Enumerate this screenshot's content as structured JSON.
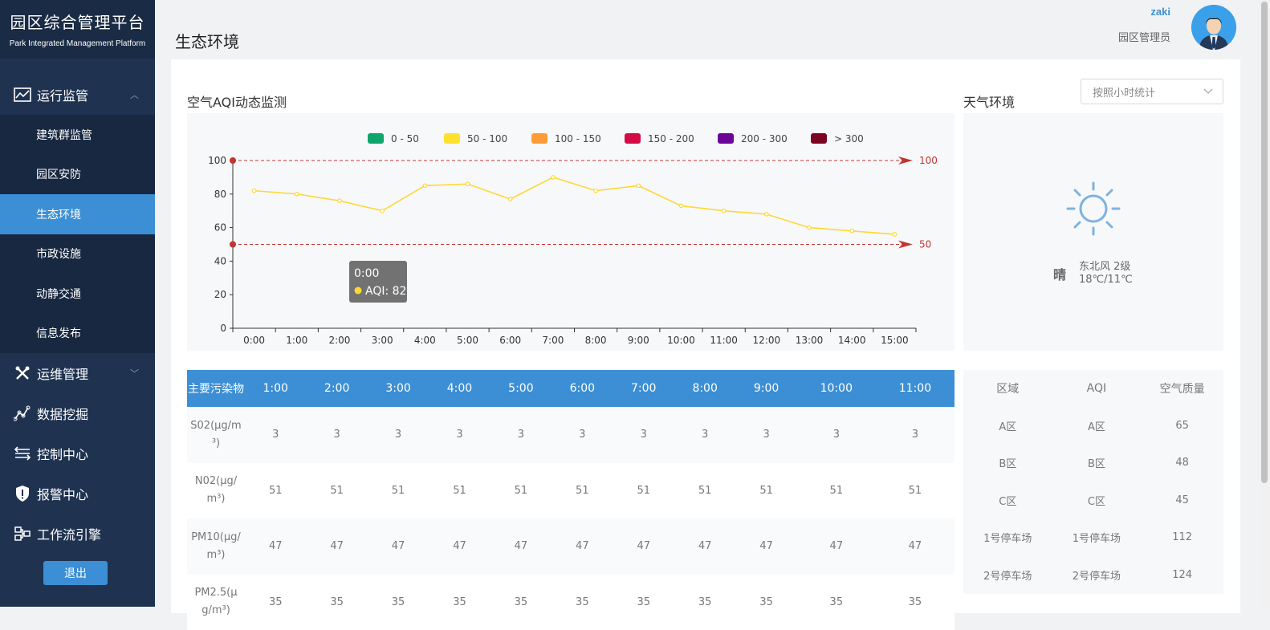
{
  "brand": {
    "title": "园区综合管理平台",
    "subtitle": "Park Integrated Management Platform"
  },
  "sidebar": {
    "groups": [
      {
        "label": "运行监管",
        "icon": "monitor-chart-icon"
      },
      {
        "label": "运维管理",
        "icon": "tools-icon"
      },
      {
        "label": "数据挖掘",
        "icon": "data-mining-icon"
      },
      {
        "label": "控制中心",
        "icon": "control-sliders-icon"
      },
      {
        "label": "报警中心",
        "icon": "alarm-shield-icon"
      },
      {
        "label": "工作流引擎",
        "icon": "workflow-icon"
      }
    ],
    "sub_items": [
      "建筑群监管",
      "园区安防",
      "生态环境",
      "市政设施",
      "动静交通",
      "信息发布"
    ],
    "active_sub": "生态环境",
    "logout_label": "退出"
  },
  "header": {
    "page_title": "生态环境",
    "user_name": "zaki",
    "user_role": "园区管理员"
  },
  "aqi_section": {
    "title": "空气AQI动态监测"
  },
  "weather_section": {
    "title": "天气环境",
    "select_value": "按照小时统计",
    "condition": "晴",
    "wind": "东北风 2级",
    "temperature": "18℃/11℃",
    "icon": "sun-icon"
  },
  "chart_data": {
    "type": "line",
    "legend": [
      {
        "label": "0 - 50",
        "color": "#0fa56d"
      },
      {
        "label": "50 - 100",
        "color": "#fee02e"
      },
      {
        "label": "100 - 150",
        "color": "#fd9b36"
      },
      {
        "label": "150 - 200",
        "color": "#d40b44"
      },
      {
        "label": "200 - 300",
        "color": "#6a0597"
      },
      {
        "label": "> 300",
        "color": "#7d0322"
      }
    ],
    "x": [
      "0:00",
      "1:00",
      "2:00",
      "3:00",
      "4:00",
      "5:00",
      "6:00",
      "7:00",
      "8:00",
      "9:00",
      "10:00",
      "11:00",
      "12:00",
      "13:00",
      "14:00",
      "15:00"
    ],
    "series": [
      {
        "values": [
          82,
          80,
          76,
          70,
          85,
          86,
          77,
          90,
          82,
          85,
          73,
          70,
          68,
          60,
          58,
          56
        ],
        "color": "#fdd835"
      }
    ],
    "yticks": [
      0,
      20,
      40,
      60,
      80,
      100
    ],
    "ylim": [
      0,
      100
    ],
    "mark_lines": [
      {
        "value": 100,
        "label": "100"
      },
      {
        "value": 50,
        "label": "50"
      }
    ],
    "tooltip": {
      "title": "0:00",
      "label": "AQI: 82"
    }
  },
  "pollutant_table": {
    "headers": [
      "主要污染物",
      "1:00",
      "2:00",
      "3:00",
      "4:00",
      "5:00",
      "6:00",
      "7:00",
      "8:00",
      "9:00",
      "10:00",
      "11:00"
    ],
    "rows": [
      {
        "name": "S02(μg/m³)",
        "values": [
          "3",
          "3",
          "3",
          "3",
          "3",
          "3",
          "3",
          "3",
          "3",
          "3",
          "3"
        ]
      },
      {
        "name": "N02(μg/m³)",
        "values": [
          "51",
          "51",
          "51",
          "51",
          "51",
          "51",
          "51",
          "51",
          "51",
          "51",
          "51"
        ]
      },
      {
        "name": "PM10(μg/m³)",
        "values": [
          "47",
          "47",
          "47",
          "47",
          "47",
          "47",
          "47",
          "47",
          "47",
          "47",
          "47"
        ]
      },
      {
        "name": "PM2.5(μg/m³)",
        "values": [
          "35",
          "35",
          "35",
          "35",
          "35",
          "35",
          "35",
          "35",
          "35",
          "35",
          "35"
        ]
      }
    ]
  },
  "area_table": {
    "headers": [
      "区域",
      "AQI",
      "空气质量"
    ],
    "rows": [
      [
        "A区",
        "A区",
        "65"
      ],
      [
        "B区",
        "B区",
        "48"
      ],
      [
        "C区",
        "C区",
        "45"
      ],
      [
        "1号停车场",
        "1号停车场",
        "112"
      ],
      [
        "2号停车场",
        "2号停车场",
        "124"
      ]
    ]
  }
}
